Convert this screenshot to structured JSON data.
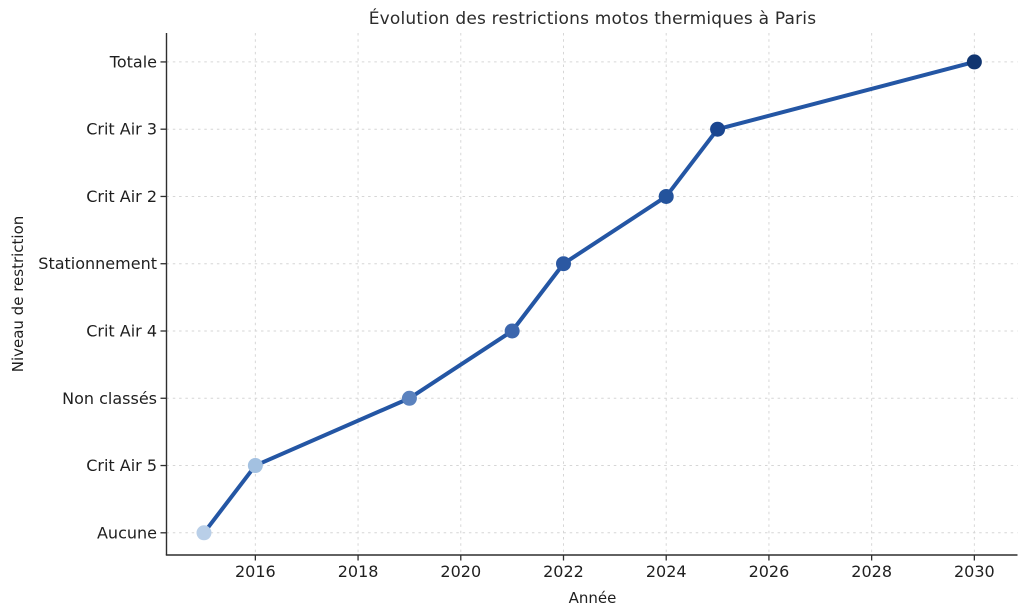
{
  "figure": {
    "background": "#ffffff"
  },
  "chart_data": {
    "type": "line",
    "title": "Évolution des restrictions motos thermiques à Paris",
    "xlabel": "Année",
    "ylabel": "Niveau de restriction",
    "xticks": [
      2016,
      2018,
      2020,
      2022,
      2024,
      2026,
      2028,
      2030
    ],
    "ytick_labels": [
      "Aucune",
      "Crit Air 5",
      "Non classés",
      "Crit Air 4",
      "Stationnement",
      "Crit Air 2",
      "Crit Air 3",
      "Totale"
    ],
    "xlim": [
      2014.27,
      2030.84
    ],
    "ylim": [
      -0.33,
      7.43
    ],
    "grid": true,
    "legend": false,
    "x": [
      2015,
      2016,
      2019,
      2021,
      2022,
      2024,
      2025,
      2030
    ],
    "y": [
      0,
      1,
      2,
      3,
      4,
      5,
      6,
      7
    ],
    "points": [
      {
        "year": 2015,
        "level": 0,
        "label": "Aucune",
        "color": "#b9cfe8"
      },
      {
        "year": 2016,
        "level": 1,
        "label": "Crit Air 5",
        "color": "#a3c1e1"
      },
      {
        "year": 2019,
        "level": 2,
        "label": "Non classés",
        "color": "#5b82be"
      },
      {
        "year": 2021,
        "level": 3,
        "label": "Crit Air 4",
        "color": "#3c66ad"
      },
      {
        "year": 2022,
        "level": 4,
        "label": "Stationnement",
        "color": "#2b58a2"
      },
      {
        "year": 2024,
        "level": 5,
        "label": "Crit Air 2",
        "color": "#24539c"
      },
      {
        "year": 2025,
        "level": 6,
        "label": "Crit Air 3",
        "color": "#1b4690"
      },
      {
        "year": 2030,
        "level": 7,
        "label": "Totale",
        "color": "#103570"
      }
    ],
    "style": {
      "line_color": "#2456a4",
      "grid_color": "#d6d6d6",
      "axis_color": "#2e2e2e",
      "text_color": "#1f1f1f",
      "marker_radius": 7.5,
      "line_width": 4
    }
  }
}
